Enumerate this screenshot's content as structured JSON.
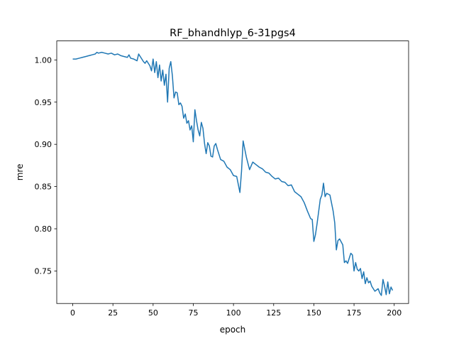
{
  "chart_data": {
    "type": "line",
    "title": "RF_bhandhlyp_6-31pgs4",
    "xlabel": "epoch",
    "ylabel": "mre",
    "xlim": [
      -9.95,
      208.95
    ],
    "ylim": [
      0.7115,
      1.0225
    ],
    "xticks": [
      0,
      25,
      50,
      75,
      100,
      125,
      150,
      175,
      200
    ],
    "yticks": [
      0.75,
      0.8,
      0.85,
      0.9,
      0.95,
      1.0
    ],
    "ytick_labels": [
      "0.75",
      "0.80",
      "0.85",
      "0.90",
      "0.95",
      "1.00"
    ],
    "grid": false,
    "legend": null,
    "line_color": "#1f77b4",
    "series": [
      {
        "x": [
          0,
          2,
          4,
          6,
          8,
          10,
          12,
          14,
          15,
          16,
          18,
          20,
          22,
          24,
          26,
          28,
          30,
          32,
          34,
          35,
          36,
          38,
          40,
          41,
          42,
          44,
          45,
          46,
          48,
          49,
          50,
          51,
          52,
          53,
          54,
          55,
          56,
          57,
          58,
          59,
          60,
          61,
          62,
          63,
          64,
          65,
          66,
          67,
          68,
          69,
          70,
          71,
          72,
          73,
          74,
          75,
          76,
          77,
          78,
          79,
          80,
          81,
          82,
          83,
          84,
          85,
          86,
          87,
          88,
          89,
          90,
          92,
          94,
          96,
          98,
          100,
          102,
          104,
          105,
          106,
          108,
          110,
          112,
          114,
          116,
          118,
          120,
          122,
          124,
          126,
          128,
          130,
          132,
          134,
          136,
          138,
          140,
          142,
          144,
          146,
          148,
          149,
          150,
          151,
          152,
          154,
          155,
          156,
          157,
          158,
          160,
          162,
          163,
          164,
          165,
          166,
          168,
          169,
          170,
          171,
          172,
          173,
          174,
          175,
          176,
          177,
          178,
          179,
          180,
          181,
          182,
          183,
          184,
          185,
          186,
          188,
          190,
          191,
          192,
          193,
          194,
          195,
          196,
          197,
          198,
          199
        ],
        "y": [
          1.001,
          1.001,
          1.002,
          1.003,
          1.004,
          1.005,
          1.006,
          1.007,
          1.009,
          1.008,
          1.009,
          1.008,
          1.007,
          1.008,
          1.006,
          1.007,
          1.005,
          1.004,
          1.003,
          1.006,
          1.002,
          1.001,
          0.999,
          1.007,
          1.004,
          0.998,
          0.996,
          0.999,
          0.993,
          0.987,
          1.001,
          0.985,
          0.998,
          0.979,
          0.994,
          0.975,
          0.988,
          0.97,
          0.983,
          0.95,
          0.99,
          0.998,
          0.981,
          0.955,
          0.962,
          0.961,
          0.947,
          0.949,
          0.945,
          0.931,
          0.936,
          0.925,
          0.928,
          0.917,
          0.922,
          0.903,
          0.941,
          0.928,
          0.917,
          0.91,
          0.926,
          0.919,
          0.901,
          0.889,
          0.902,
          0.898,
          0.886,
          0.885,
          0.898,
          0.901,
          0.894,
          0.882,
          0.88,
          0.873,
          0.87,
          0.863,
          0.862,
          0.843,
          0.868,
          0.904,
          0.885,
          0.87,
          0.879,
          0.876,
          0.873,
          0.871,
          0.867,
          0.866,
          0.862,
          0.859,
          0.86,
          0.856,
          0.855,
          0.851,
          0.852,
          0.844,
          0.841,
          0.838,
          0.831,
          0.821,
          0.812,
          0.811,
          0.785,
          0.793,
          0.806,
          0.835,
          0.84,
          0.854,
          0.838,
          0.842,
          0.84,
          0.821,
          0.807,
          0.775,
          0.786,
          0.788,
          0.781,
          0.76,
          0.762,
          0.759,
          0.765,
          0.771,
          0.769,
          0.75,
          0.76,
          0.752,
          0.75,
          0.753,
          0.741,
          0.749,
          0.735,
          0.742,
          0.736,
          0.738,
          0.732,
          0.726,
          0.729,
          0.724,
          0.721,
          0.74,
          0.732,
          0.722,
          0.737,
          0.723,
          0.731,
          0.727
        ]
      }
    ]
  }
}
